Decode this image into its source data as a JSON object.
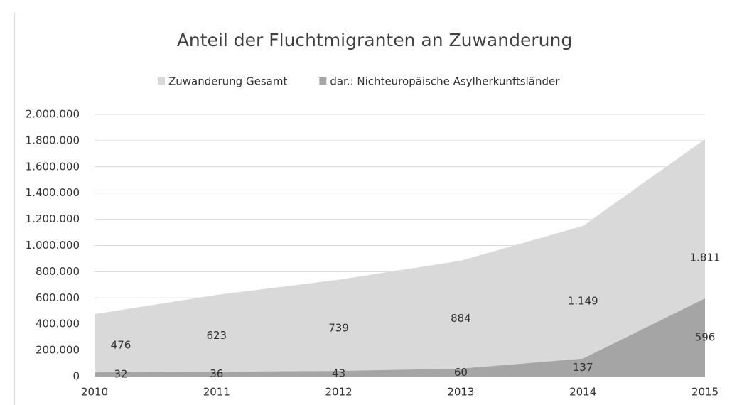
{
  "chart_data": {
    "type": "area",
    "title": "Anteil der Fluchtmigranten an Zuwanderung",
    "categories": [
      "2010",
      "2011",
      "2012",
      "2013",
      "2014",
      "2015"
    ],
    "series": [
      {
        "name": "Zuwanderung Gesamt",
        "color": "#d9d9d9",
        "values": [
          476000,
          623000,
          739000,
          884000,
          1149000,
          1811000
        ],
        "value_labels": [
          "476",
          "623",
          "739",
          "884",
          "1.149",
          "1.811"
        ]
      },
      {
        "name": "dar.: Nichteuropäische Asylherkunftsländer",
        "color": "#a5a5a5",
        "values": [
          32000,
          36000,
          43000,
          60000,
          137000,
          596000
        ],
        "value_labels": [
          "32",
          "36",
          "43",
          "60",
          "137",
          "596"
        ]
      }
    ],
    "ylim": [
      0,
      2000000
    ],
    "yticks": [
      0,
      {
        "value": 200000,
        "label": "200.000"
      },
      {
        "value": 400000,
        "label": "400.000"
      },
      {
        "value": 600000,
        "label": "600.000"
      },
      {
        "value": 800000,
        "label": "800.000"
      },
      {
        "value": 1000000,
        "label": "1.000.000"
      },
      {
        "value": 1200000,
        "label": "1.200.000"
      },
      {
        "value": 1400000,
        "label": "1.400.000"
      },
      {
        "value": 1600000,
        "label": "1.600.000"
      },
      {
        "value": 1800000,
        "label": "1.800.000"
      },
      {
        "value": 2000000,
        "label": "2.000.000"
      }
    ],
    "grid": true,
    "legend": "top"
  }
}
